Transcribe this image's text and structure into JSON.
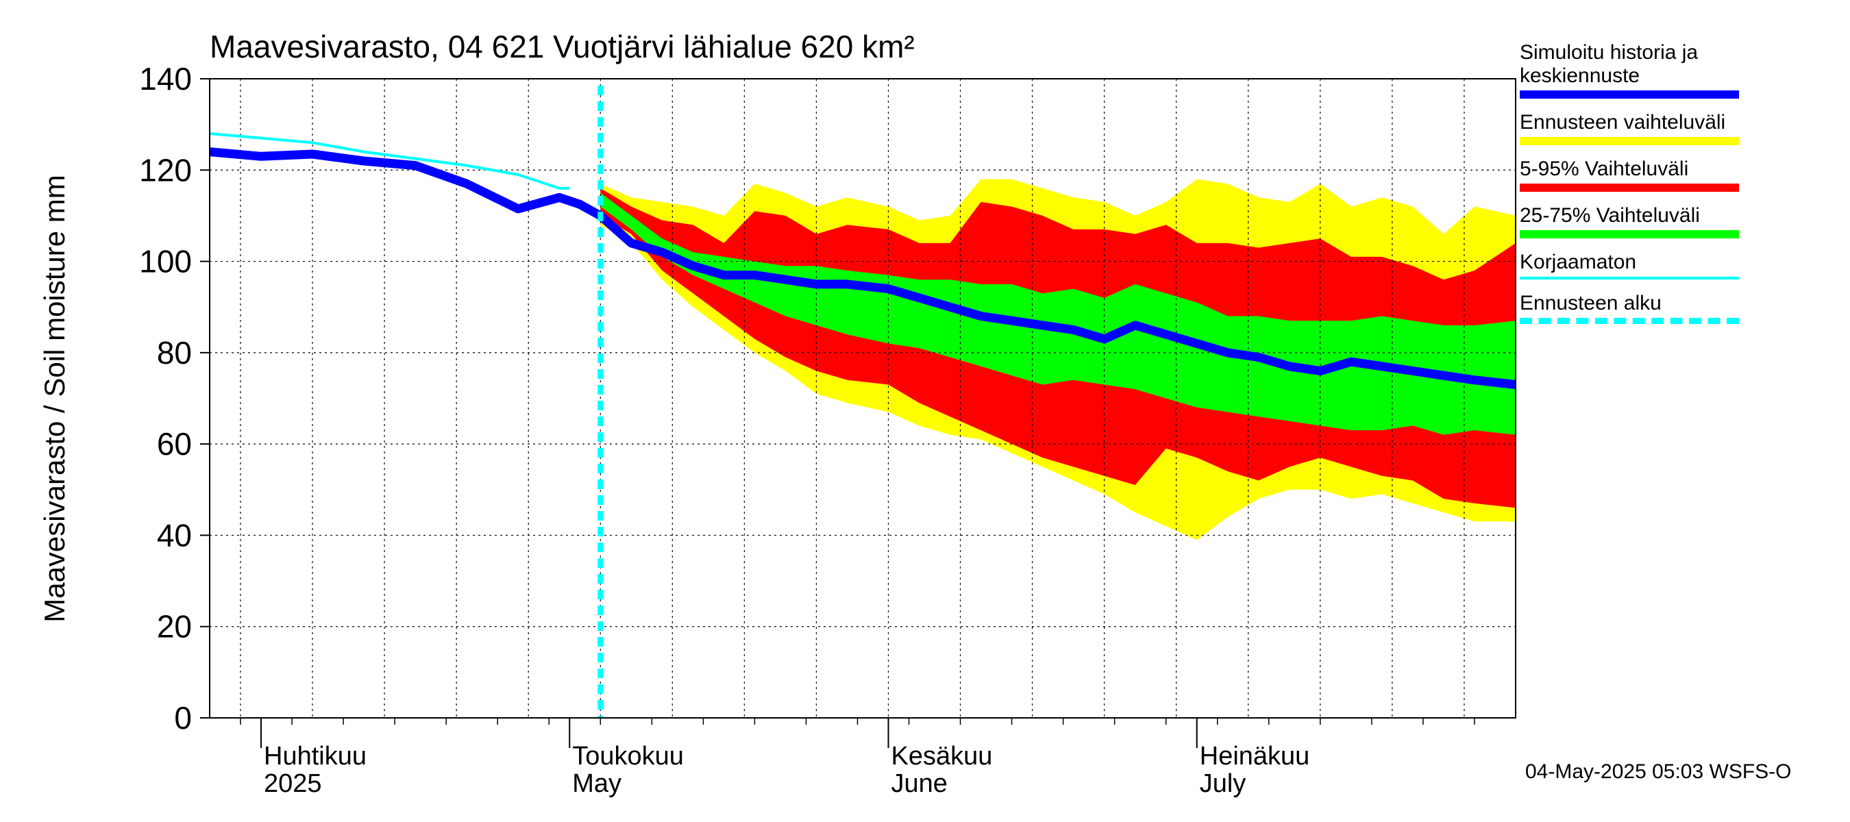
{
  "chart_data": {
    "type": "area",
    "title": "Maavesivarasto, 04 621 Vuotjärvi lähialue 620 km²",
    "ylabel": "Maavesivarasto / Soil moisture   mm",
    "xlabel": "",
    "ylim": [
      0,
      140
    ],
    "y_ticks": [
      "0",
      "20",
      "40",
      "60",
      "80",
      "100",
      "120",
      "140"
    ],
    "xlim": [
      "2025-03-27",
      "2025-08-01"
    ],
    "x_ticks": [
      {
        "date": "2025-04-01",
        "line1": "Huhtikuu",
        "line2": "2025"
      },
      {
        "date": "2025-05-01",
        "line1": "Toukokuu",
        "line2": "May"
      },
      {
        "date": "2025-06-01",
        "line1": "Kesäkuu",
        "line2": "June"
      },
      {
        "date": "2025-07-01",
        "line1": "Heinäkuu",
        "line2": "July"
      }
    ],
    "grid": true,
    "legend_position": "right",
    "forecast_start": "2025-05-04",
    "colors": {
      "history": "#0000ff",
      "range_full": "#ffff00",
      "range_5_95": "#ff0000",
      "range_25_75": "#00ff00",
      "uncorrected": "#00ffff",
      "forecast_start": "#00ffff"
    },
    "series": [
      {
        "name": "Simuloitu historia ja keskiennuste",
        "role": "median",
        "x": [
          "2025-03-27",
          "2025-04-01",
          "2025-04-06",
          "2025-04-11",
          "2025-04-16",
          "2025-04-21",
          "2025-04-26",
          "2025-04-30",
          "2025-05-02",
          "2025-05-04",
          "2025-05-07",
          "2025-05-10",
          "2025-05-13",
          "2025-05-16",
          "2025-05-19",
          "2025-05-22",
          "2025-05-25",
          "2025-05-28",
          "2025-06-01",
          "2025-06-04",
          "2025-06-07",
          "2025-06-10",
          "2025-06-13",
          "2025-06-16",
          "2025-06-19",
          "2025-06-22",
          "2025-06-25",
          "2025-06-28",
          "2025-07-01",
          "2025-07-04",
          "2025-07-07",
          "2025-07-10",
          "2025-07-13",
          "2025-07-16",
          "2025-07-19",
          "2025-07-22",
          "2025-07-25",
          "2025-07-28",
          "2025-08-01"
        ],
        "y": [
          124,
          123,
          123.5,
          122,
          121,
          117,
          111.5,
          114,
          112.5,
          110,
          104,
          102,
          99,
          97,
          97,
          96,
          95,
          95,
          94,
          92,
          90,
          88,
          87,
          86,
          85,
          83,
          86,
          84,
          82,
          80,
          79,
          77,
          76,
          78,
          77,
          76,
          75,
          74,
          73
        ]
      },
      {
        "name": "Korjaamaton",
        "role": "uncorrected",
        "x": [
          "2025-03-27",
          "2025-04-01",
          "2025-04-06",
          "2025-04-11",
          "2025-04-16",
          "2025-04-21",
          "2025-04-26",
          "2025-04-30",
          "2025-05-01"
        ],
        "y": [
          128,
          127,
          126,
          124,
          122.5,
          121,
          119,
          116,
          116
        ]
      }
    ],
    "bands": [
      {
        "name": "Ennusteen vaihteluväli",
        "x": [
          "2025-05-04",
          "2025-05-07",
          "2025-05-10",
          "2025-05-13",
          "2025-05-16",
          "2025-05-19",
          "2025-05-22",
          "2025-05-25",
          "2025-05-28",
          "2025-06-01",
          "2025-06-04",
          "2025-06-07",
          "2025-06-10",
          "2025-06-13",
          "2025-06-16",
          "2025-06-19",
          "2025-06-22",
          "2025-06-25",
          "2025-06-28",
          "2025-07-01",
          "2025-07-04",
          "2025-07-07",
          "2025-07-10",
          "2025-07-13",
          "2025-07-16",
          "2025-07-19",
          "2025-07-22",
          "2025-07-25",
          "2025-07-28",
          "2025-08-01"
        ],
        "upper": [
          117,
          114,
          113,
          112,
          110,
          117,
          115,
          112,
          114,
          112,
          109,
          110,
          118,
          118,
          116,
          114,
          113,
          110,
          113,
          118,
          117,
          114,
          113,
          117,
          112,
          114,
          112,
          106,
          112,
          110
        ],
        "lower": [
          108,
          104,
          96,
          90,
          85,
          80,
          76,
          71,
          69,
          67,
          64,
          62,
          61,
          58,
          55,
          52,
          49,
          45,
          42,
          39,
          44,
          48,
          50,
          50,
          48,
          49,
          47,
          45,
          43,
          43
        ]
      },
      {
        "name": "5-95% Vaihteluväli",
        "x": [
          "2025-05-04",
          "2025-05-07",
          "2025-05-10",
          "2025-05-13",
          "2025-05-16",
          "2025-05-19",
          "2025-05-22",
          "2025-05-25",
          "2025-05-28",
          "2025-06-01",
          "2025-06-04",
          "2025-06-07",
          "2025-06-10",
          "2025-06-13",
          "2025-06-16",
          "2025-06-19",
          "2025-06-22",
          "2025-06-25",
          "2025-06-28",
          "2025-07-01",
          "2025-07-04",
          "2025-07-07",
          "2025-07-10",
          "2025-07-13",
          "2025-07-16",
          "2025-07-19",
          "2025-07-22",
          "2025-07-25",
          "2025-07-28",
          "2025-08-01"
        ],
        "upper": [
          116,
          112,
          109,
          108,
          104,
          111,
          110,
          106,
          108,
          107,
          104,
          104,
          113,
          112,
          110,
          107,
          107,
          106,
          108,
          104,
          104,
          103,
          104,
          105,
          101,
          101,
          99,
          96,
          98,
          104
        ],
        "lower": [
          110,
          106,
          98,
          93,
          88,
          83,
          79,
          76,
          74,
          73,
          69,
          66,
          63,
          60,
          57,
          55,
          53,
          51,
          59,
          57,
          54,
          52,
          55,
          57,
          55,
          53,
          52,
          48,
          47,
          46
        ]
      },
      {
        "name": "25-75% Vaihteluväli",
        "x": [
          "2025-05-04",
          "2025-05-07",
          "2025-05-10",
          "2025-05-13",
          "2025-05-16",
          "2025-05-19",
          "2025-05-22",
          "2025-05-25",
          "2025-05-28",
          "2025-06-01",
          "2025-06-04",
          "2025-06-07",
          "2025-06-10",
          "2025-06-13",
          "2025-06-16",
          "2025-06-19",
          "2025-06-22",
          "2025-06-25",
          "2025-06-28",
          "2025-07-01",
          "2025-07-04",
          "2025-07-07",
          "2025-07-10",
          "2025-07-13",
          "2025-07-16",
          "2025-07-19",
          "2025-07-22",
          "2025-07-25",
          "2025-07-28",
          "2025-08-01"
        ],
        "upper": [
          115,
          110,
          105,
          102,
          101,
          100,
          99,
          99,
          98,
          97,
          96,
          96,
          95,
          95,
          93,
          94,
          92,
          95,
          93,
          91,
          88,
          88,
          87,
          87,
          87,
          88,
          87,
          86,
          86,
          87
        ],
        "lower": [
          112,
          107,
          101,
          97,
          94,
          91,
          88,
          86,
          84,
          82,
          81,
          79,
          77,
          75,
          73,
          74,
          73,
          72,
          70,
          68,
          67,
          66,
          65,
          64,
          63,
          63,
          64,
          62,
          63,
          62
        ]
      }
    ],
    "legend": [
      {
        "label": "Simuloitu historia ja\nkeskiennuste",
        "color": "#0000ff",
        "style": "thick"
      },
      {
        "label": "Ennusteen vaihteluväli",
        "color": "#ffff00",
        "style": "thick"
      },
      {
        "label": "5-95% Vaihteluväli",
        "color": "#ff0000",
        "style": "thick"
      },
      {
        "label": "25-75% Vaihteluväli",
        "color": "#00ff00",
        "style": "thick"
      },
      {
        "label": "Korjaamaton",
        "color": "#00ffff",
        "style": "thin"
      },
      {
        "label": "Ennusteen alku",
        "color": "#00ffff",
        "style": "dashed"
      }
    ]
  },
  "footer": {
    "timestamp": "04-May-2025 05:03 WSFS-O"
  }
}
